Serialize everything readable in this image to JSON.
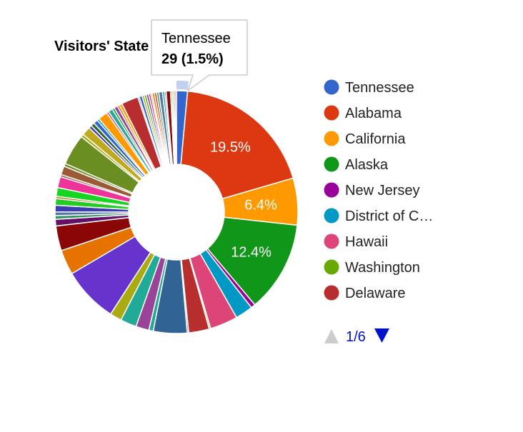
{
  "chart_data": {
    "type": "pie",
    "pieHole": true,
    "title": "Visitors' State",
    "slices": [
      {
        "label": "Tennessee",
        "percent": 1.5,
        "value": 29,
        "color": "#3366cc"
      },
      {
        "label": "Alabama",
        "percent": 19.5,
        "color": "#dc3912"
      },
      {
        "label": "California",
        "percent": 6.4,
        "color": "#ff9900"
      },
      {
        "label": "Alaska",
        "percent": 12.4,
        "color": "#109618"
      },
      {
        "label": "New Jersey",
        "percent": 0.6,
        "color": "#990099"
      },
      {
        "label": "District of C…",
        "percent": 2.4,
        "color": "#0099c6"
      },
      {
        "label": "Hawaii",
        "percent": 3.8,
        "color": "#dd4477"
      },
      {
        "label": "Washington",
        "percent": 0.2,
        "color": "#66aa00"
      },
      {
        "label": "Delaware",
        "percent": 2.8,
        "color": "#b82e2e"
      },
      {
        "label": "",
        "percent": 0.2,
        "color": "#994499"
      },
      {
        "label": "",
        "percent": 4.6,
        "color": "#316395"
      },
      {
        "label": "",
        "percent": 0.6,
        "color": "#22aa99"
      },
      {
        "label": "",
        "percent": 1.8,
        "color": "#994499"
      },
      {
        "label": "",
        "percent": 2.2,
        "color": "#22aa99"
      },
      {
        "label": "",
        "percent": 1.6,
        "color": "#aaaa11"
      },
      {
        "label": "",
        "percent": 7.6,
        "color": "#6633cc"
      },
      {
        "label": "",
        "percent": 3.4,
        "color": "#e67300"
      },
      {
        "label": "",
        "percent": 3.4,
        "color": "#8b0707"
      },
      {
        "label": "",
        "percent": 0.9,
        "color": "#651067"
      },
      {
        "label": "",
        "percent": 0.5,
        "color": "#329262"
      },
      {
        "label": "",
        "percent": 0.5,
        "color": "#5574a6"
      },
      {
        "label": "",
        "percent": 0.9,
        "color": "#3b3eac"
      },
      {
        "label": "",
        "percent": 0.9,
        "color": "#22cc22"
      },
      {
        "label": "",
        "percent": 0.3,
        "color": "#b77322"
      },
      {
        "label": "",
        "percent": 1.2,
        "color": "#16d620"
      },
      {
        "label": "",
        "percent": 1.5,
        "color": "#ee3399"
      },
      {
        "label": "",
        "percent": 0.3,
        "color": "#9c5935"
      },
      {
        "label": "",
        "percent": 1.2,
        "color": "#9c5935"
      },
      {
        "label": "",
        "percent": 0.4,
        "color": "#6b8e23"
      },
      {
        "label": "",
        "percent": 4.2,
        "color": "#6b8e23"
      },
      {
        "label": "",
        "percent": 0.4,
        "color": "#aaaa11"
      },
      {
        "label": "",
        "percent": 1.2,
        "color": "#c0a91e"
      },
      {
        "label": "",
        "percent": 0.4,
        "color": "#3b3eac"
      },
      {
        "label": "",
        "percent": 0.5,
        "color": "#336633"
      },
      {
        "label": "",
        "percent": 0.6,
        "color": "#3366cc"
      },
      {
        "label": "",
        "percent": 0.3,
        "color": "#0099c6"
      },
      {
        "label": "",
        "percent": 1.3,
        "color": "#ff9900"
      },
      {
        "label": "",
        "percent": 0.3,
        "color": "#dd4477"
      },
      {
        "label": "",
        "percent": 0.6,
        "color": "#22aa99"
      },
      {
        "label": "",
        "percent": 0.3,
        "color": "#109618"
      },
      {
        "label": "",
        "percent": 0.5,
        "color": "#994499"
      },
      {
        "label": "",
        "percent": 0.3,
        "color": "#e67300"
      },
      {
        "label": "",
        "percent": 0.4,
        "color": "#ff9900"
      },
      {
        "label": "",
        "percent": 2.3,
        "color": "#b82e2e"
      },
      {
        "label": "",
        "percent": 0.2,
        "color": "#316395"
      },
      {
        "label": "",
        "percent": 0.4,
        "color": "#3366cc"
      },
      {
        "label": "",
        "percent": 0.3,
        "color": "#aaaa11"
      },
      {
        "label": "",
        "percent": 0.3,
        "color": "#66aa00"
      },
      {
        "label": "",
        "percent": 0.3,
        "color": "#6633cc"
      },
      {
        "label": "",
        "percent": 0.3,
        "color": "#dd4477"
      },
      {
        "label": "",
        "percent": 0.2,
        "color": "#ff9900"
      },
      {
        "label": "",
        "percent": 0.3,
        "color": "#e67300"
      },
      {
        "label": "",
        "percent": 0.3,
        "color": "#dc3912"
      },
      {
        "label": "",
        "percent": 0.3,
        "color": "#329262"
      },
      {
        "label": "",
        "percent": 0.5,
        "color": "#5574a6"
      },
      {
        "label": "",
        "percent": 0.3,
        "color": "#22aa99"
      },
      {
        "label": "",
        "percent": 0.2,
        "color": "#3b3eac"
      },
      {
        "label": "",
        "percent": 0.6,
        "color": "#8b0707"
      },
      {
        "label": "",
        "percent": 0.2,
        "color": "#109618"
      },
      {
        "label": "",
        "percent": 0.2,
        "color": "#aaaa11"
      },
      {
        "label": "",
        "percent": 0.2,
        "color": "#316395"
      },
      {
        "label": "",
        "percent": 0.2,
        "color": "#dc3912"
      }
    ],
    "shown_slice_labels": [
      {
        "slice": 1,
        "text": "19.5%"
      },
      {
        "slice": 2,
        "text": "6.4%"
      },
      {
        "slice": 3,
        "text": "12.4%"
      }
    ],
    "legend": {
      "position": "right",
      "page": "1/6",
      "items": [
        {
          "label": "Tennessee",
          "color": "#3366cc"
        },
        {
          "label": "Alabama",
          "color": "#dc3912"
        },
        {
          "label": "California",
          "color": "#ff9900"
        },
        {
          "label": "Alaska",
          "color": "#109618"
        },
        {
          "label": "New Jersey",
          "color": "#990099"
        },
        {
          "label": "District of C…",
          "color": "#0099c6"
        },
        {
          "label": "Hawaii",
          "color": "#dd4477"
        },
        {
          "label": "Washington",
          "color": "#66aa00"
        },
        {
          "label": "Delaware",
          "color": "#b82e2e"
        }
      ]
    },
    "tooltip": {
      "slice": 0,
      "title": "Tennessee",
      "value": "29 (1.5%)"
    }
  },
  "pager": {
    "prev_icon": "triangle-up-icon",
    "next_icon": "triangle-down-icon",
    "prev_color": "#cccccc",
    "next_color": "#0011cc"
  }
}
